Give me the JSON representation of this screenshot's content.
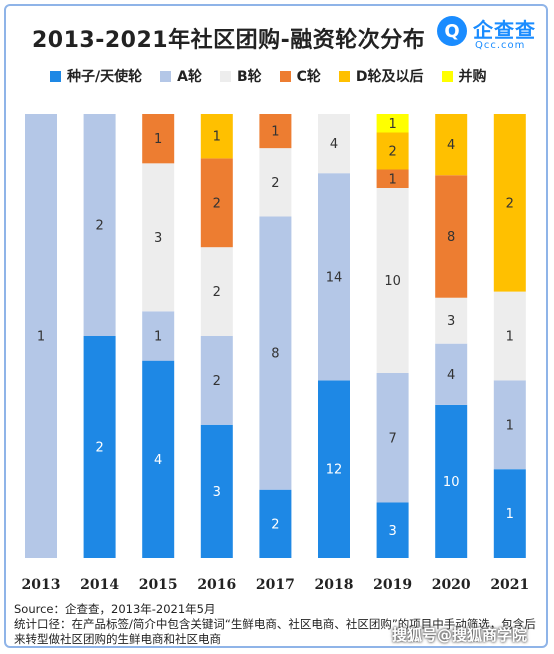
{
  "title": "2013-2021年社区团购-融资轮次分布",
  "brand": {
    "name": "企查查",
    "sub": "Qcc.com",
    "mark": "Q"
  },
  "colors": {
    "seed": "#1e88e5",
    "a": "#b4c7e7",
    "b": "#ededed",
    "c": "#ed7d31",
    "d": "#ffc000",
    "ma": "#ffff00"
  },
  "chart_data": {
    "type": "bar",
    "stacked": true,
    "normalized": true,
    "categories": [
      "2013",
      "2014",
      "2015",
      "2016",
      "2017",
      "2018",
      "2019",
      "2020",
      "2021"
    ],
    "series": [
      {
        "name": "种子/天使轮",
        "color_key": "seed",
        "values": [
          0,
          2,
          4,
          3,
          2,
          12,
          3,
          10,
          1
        ]
      },
      {
        "name": "A轮",
        "color_key": "a",
        "values": [
          1,
          2,
          1,
          2,
          8,
          14,
          7,
          4,
          1
        ]
      },
      {
        "name": "B轮",
        "color_key": "b",
        "values": [
          0,
          0,
          3,
          2,
          2,
          4,
          10,
          3,
          1
        ]
      },
      {
        "name": "C轮",
        "color_key": "c",
        "values": [
          0,
          0,
          1,
          2,
          1,
          0,
          1,
          8,
          0
        ]
      },
      {
        "name": "D轮及以后",
        "color_key": "d",
        "values": [
          0,
          0,
          0,
          1,
          0,
          0,
          2,
          4,
          2
        ]
      },
      {
        "name": "并购",
        "color_key": "ma",
        "values": [
          0,
          0,
          0,
          0,
          0,
          0,
          1,
          0,
          0
        ]
      }
    ]
  },
  "footer": {
    "source": "Source：企查查，2013年-2021年5月",
    "note": "统计口径：在产品标签/简介中包含关键词“生鲜电商、社区电商、社区团购”的项目中手动筛选，包含后来转型做社区团购的生鲜电商和社区电商"
  },
  "watermark": "搜狐号@搜狐商学院"
}
